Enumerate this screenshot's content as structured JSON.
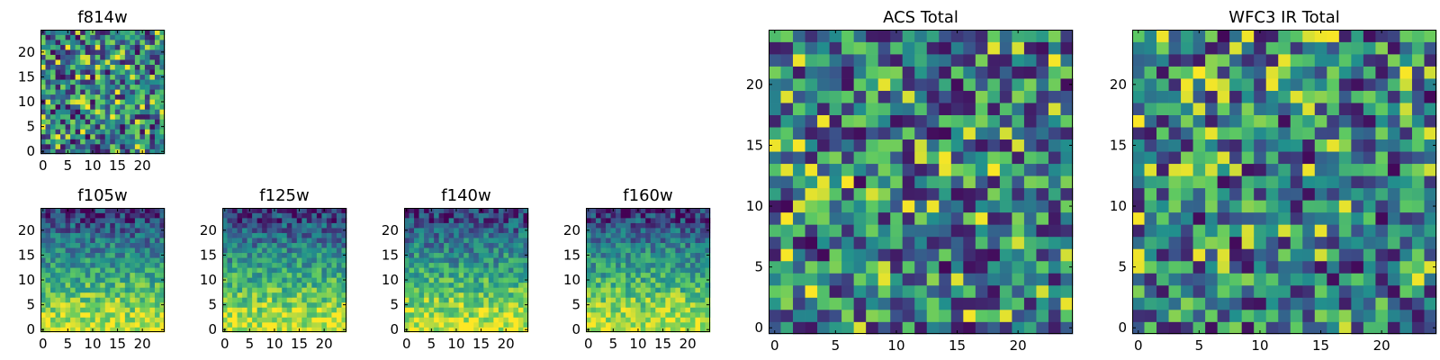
{
  "figure": {
    "colormap": [
      "#440154",
      "#3b528b",
      "#21908d",
      "#5dc962",
      "#fde725"
    ]
  },
  "chart_data": [
    {
      "type": "heatmap",
      "title": "f814w",
      "seed": 11,
      "texture": "noise",
      "grid": 25,
      "xlim": [
        0,
        24
      ],
      "ylim": [
        0,
        24
      ],
      "xticks": [
        0,
        5,
        10,
        15,
        20
      ],
      "yticks": [
        0,
        5,
        10,
        15,
        20
      ],
      "xticklabels": [
        "0",
        "5",
        "10",
        "15",
        "20"
      ],
      "yticklabels": [
        "0",
        "5",
        "10",
        "15",
        "20"
      ]
    },
    {
      "type": "heatmap",
      "title": "f105w",
      "seed": 23,
      "texture": "gradient",
      "grid": 25,
      "xlim": [
        0,
        24
      ],
      "ylim": [
        0,
        24
      ],
      "xticks": [
        0,
        5,
        10,
        15,
        20
      ],
      "yticks": [
        0,
        5,
        10,
        15,
        20
      ],
      "xticklabels": [
        "0",
        "5",
        "10",
        "15",
        "20"
      ],
      "yticklabels": [
        "0",
        "5",
        "10",
        "15",
        "20"
      ]
    },
    {
      "type": "heatmap",
      "title": "f125w",
      "seed": 37,
      "texture": "gradient",
      "grid": 25,
      "xlim": [
        0,
        24
      ],
      "ylim": [
        0,
        24
      ],
      "xticks": [
        0,
        5,
        10,
        15,
        20
      ],
      "yticks": [
        0,
        5,
        10,
        15,
        20
      ],
      "xticklabels": [
        "0",
        "5",
        "10",
        "15",
        "20"
      ],
      "yticklabels": [
        "0",
        "5",
        "10",
        "15",
        "20"
      ]
    },
    {
      "type": "heatmap",
      "title": "f140w",
      "seed": 41,
      "texture": "gradient",
      "grid": 25,
      "xlim": [
        0,
        24
      ],
      "ylim": [
        0,
        24
      ],
      "xticks": [
        0,
        5,
        10,
        15,
        20
      ],
      "yticks": [
        0,
        5,
        10,
        15,
        20
      ],
      "xticklabels": [
        "0",
        "5",
        "10",
        "15",
        "20"
      ],
      "yticklabels": [
        "0",
        "5",
        "10",
        "15",
        "20"
      ]
    },
    {
      "type": "heatmap",
      "title": "f160w",
      "seed": 53,
      "texture": "gradient",
      "grid": 25,
      "xlim": [
        0,
        24
      ],
      "ylim": [
        0,
        24
      ],
      "xticks": [
        0,
        5,
        10,
        15,
        20
      ],
      "yticks": [
        0,
        5,
        10,
        15,
        20
      ],
      "xticklabels": [
        "0",
        "5",
        "10",
        "15",
        "20"
      ],
      "yticklabels": [
        "0",
        "5",
        "10",
        "15",
        "20"
      ]
    },
    {
      "type": "heatmap",
      "title": "ACS Total",
      "seed": 67,
      "texture": "noise",
      "grid": 25,
      "xlim": [
        0,
        24
      ],
      "ylim": [
        0,
        24
      ],
      "xticks": [
        0,
        5,
        10,
        15,
        20
      ],
      "yticks": [
        0,
        5,
        10,
        15,
        20
      ],
      "xticklabels": [
        "0",
        "5",
        "10",
        "15",
        "20"
      ],
      "yticklabels": [
        "0",
        "5",
        "10",
        "15",
        "20"
      ]
    },
    {
      "type": "heatmap",
      "title": "WFC3 IR Total",
      "seed": 79,
      "texture": "noise",
      "grid": 25,
      "xlim": [
        0,
        24
      ],
      "ylim": [
        0,
        24
      ],
      "xticks": [
        0,
        5,
        10,
        15,
        20
      ],
      "yticks": [
        0,
        5,
        10,
        15,
        20
      ],
      "xticklabels": [
        "0",
        "5",
        "10",
        "15",
        "20"
      ],
      "yticklabels": [
        "0",
        "5",
        "10",
        "15",
        "20"
      ]
    }
  ]
}
